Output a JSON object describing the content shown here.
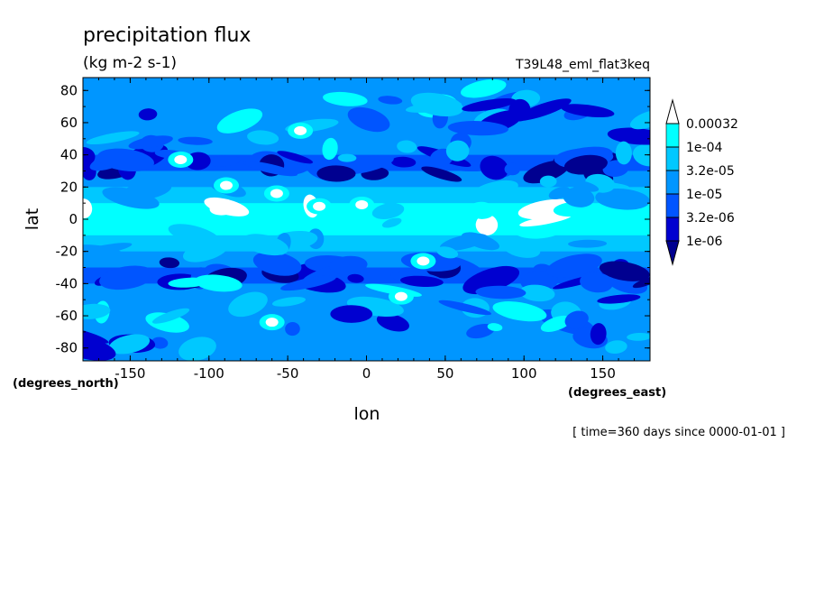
{
  "chart_data": {
    "type": "heatmap",
    "title": "precipitation flux",
    "subtitle": "(kg m-2 s-1)",
    "dataset": "T39L48_eml_flat3keq",
    "xlabel": "lon",
    "ylabel": "lat",
    "x_units": "(degrees_east)",
    "y_units": "(degrees_north)",
    "footer": "[ time=360 days since 0000-01-01 ]",
    "xlim": [
      -180,
      180
    ],
    "ylim": [
      -88,
      88
    ],
    "x_ticks": [
      -150,
      -100,
      -50,
      0,
      50,
      100,
      150
    ],
    "y_ticks": [
      80,
      60,
      40,
      20,
      0,
      -20,
      -40,
      -60,
      -80
    ],
    "x_tick_labels": [
      "-150",
      "-100",
      "-50",
      "0",
      "50",
      "100",
      "150"
    ],
    "y_tick_labels": [
      "80",
      "60",
      "40",
      "20",
      "0",
      "-20",
      "-40",
      "-60",
      "-80"
    ],
    "legend": {
      "placement": "right",
      "levels": [
        "0.00032",
        "1e-04",
        "3.2e-05",
        "1e-05",
        "3.2e-06",
        "1e-06"
      ],
      "colors": [
        "#ffffff",
        "#00ffff",
        "#00c8ff",
        "#0096ff",
        "#0055ff",
        "#0000d0",
        "#000090"
      ]
    },
    "zonal_mean_class_by_lat": [
      {
        "lat": 85,
        "class": 3
      },
      {
        "lat": 75,
        "class": 3
      },
      {
        "lat": 65,
        "class": 3
      },
      {
        "lat": 55,
        "class": 3
      },
      {
        "lat": 45,
        "class": 3
      },
      {
        "lat": 35,
        "class": 4
      },
      {
        "lat": 25,
        "class": 3
      },
      {
        "lat": 15,
        "class": 2
      },
      {
        "lat": 5,
        "class": 1
      },
      {
        "lat": -5,
        "class": 1
      },
      {
        "lat": -15,
        "class": 2
      },
      {
        "lat": -25,
        "class": 3
      },
      {
        "lat": -35,
        "class": 4
      },
      {
        "lat": -45,
        "class": 3
      },
      {
        "lat": -55,
        "class": 3
      },
      {
        "lat": -65,
        "class": 3
      },
      {
        "lat": -75,
        "class": 3
      },
      {
        "lat": -85,
        "class": 3
      }
    ],
    "extreme_spots": [
      {
        "lon": -118,
        "lat": 37,
        "class": 0
      },
      {
        "lon": -89,
        "lat": 21,
        "class": 0
      },
      {
        "lon": -57,
        "lat": 16,
        "class": 0
      },
      {
        "lon": -30,
        "lat": 8,
        "class": 0
      },
      {
        "lon": -3,
        "lat": 9,
        "class": 0
      },
      {
        "lon": 36,
        "lat": -26,
        "class": 0
      },
      {
        "lon": 22,
        "lat": -48,
        "class": 0
      },
      {
        "lon": -60,
        "lat": -64,
        "class": 0
      },
      {
        "lon": -42,
        "lat": 55,
        "class": 0
      }
    ]
  }
}
